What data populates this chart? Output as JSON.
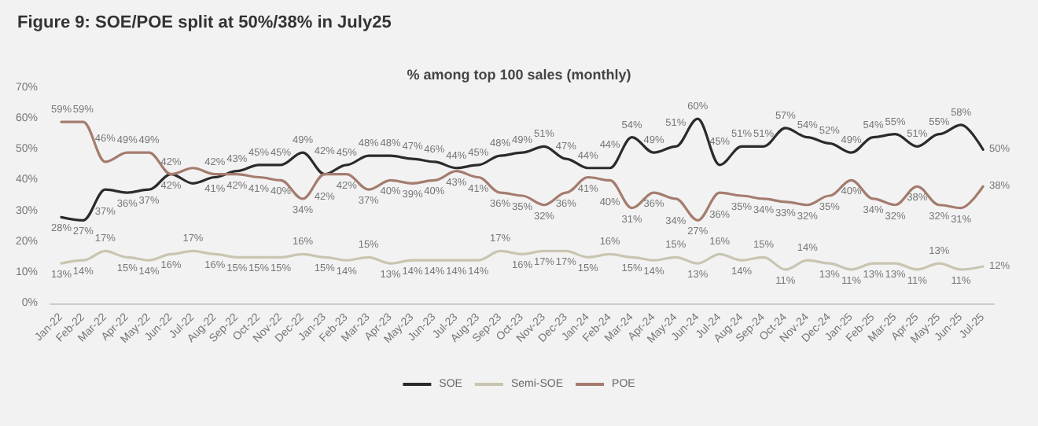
{
  "chart_data": {
    "type": "line",
    "title": "Figure 9: SOE/POE split at 50%/38% in July25",
    "subtitle": "% among top 100 sales (monthly)",
    "categories": [
      "Jan-22",
      "Feb-22",
      "Mar-22",
      "Apr-22",
      "May-22",
      "Jun-22",
      "Jul-22",
      "Aug-22",
      "Sep-22",
      "Oct-22",
      "Nov-22",
      "Dec-22",
      "Jan-23",
      "Feb-23",
      "Mar-23",
      "Apr-23",
      "May-23",
      "Jun-23",
      "Jul-23",
      "Aug-23",
      "Sep-23",
      "Oct-23",
      "Nov-23",
      "Dec-23",
      "Jan-24",
      "Feb-24",
      "Mar-24",
      "Apr-24",
      "May-24",
      "Jun-24",
      "Jul-24",
      "Aug-24",
      "Sep-24",
      "Oct-24",
      "Nov-24",
      "Dec-24",
      "Jan-25",
      "Feb-25",
      "Mar-25",
      "Apr-25",
      "May-25",
      "Jun-25",
      "Jul-25"
    ],
    "series": [
      {
        "name": "SOE",
        "color": "#2b2b2b",
        "values": [
          28,
          27,
          37,
          36,
          37,
          42,
          39,
          41,
          43,
          45,
          45,
          49,
          42,
          45,
          48,
          48,
          47,
          46,
          44,
          45,
          48,
          49,
          51,
          47,
          44,
          44,
          54,
          49,
          51,
          60,
          45,
          51,
          51,
          57,
          54,
          52,
          49,
          54,
          55,
          51,
          55,
          58,
          50
        ],
        "value_labels": [
          "28%",
          "27%",
          "37%",
          "36%",
          "37%",
          "42%",
          null,
          "41%",
          "43%",
          "45%",
          "45%",
          "49%",
          "42%",
          "45%",
          "48%",
          "48%",
          "47%",
          "46%",
          "44%",
          "45%",
          "48%",
          "49%",
          "51%",
          "47%",
          "44%",
          "44%",
          "54%",
          "49%",
          "51%",
          "60%",
          "45%",
          "51%",
          "51%",
          "57%",
          "54%",
          "52%",
          "49%",
          "54%",
          "55%",
          "51%",
          "55%",
          "58%",
          "50%"
        ]
      },
      {
        "name": "Semi-SOE",
        "color": "#c9c5b1",
        "values": [
          13,
          14,
          17,
          15,
          14,
          16,
          17,
          16,
          15,
          15,
          15,
          16,
          15,
          14,
          15,
          13,
          14,
          14,
          14,
          14,
          17,
          16,
          17,
          17,
          15,
          16,
          15,
          14,
          15,
          13,
          16,
          14,
          15,
          11,
          14,
          13,
          11,
          13,
          13,
          11,
          13,
          11,
          12
        ],
        "value_labels": [
          "13%",
          "14%",
          "17%",
          "15%",
          "14%",
          "16%",
          "17%",
          "16%",
          "15%",
          "15%",
          "15%",
          "16%",
          "15%",
          "14%",
          "15%",
          "13%",
          "14%",
          "14%",
          "14%",
          "14%",
          "17%",
          "16%",
          "17%",
          "17%",
          "15%",
          "16%",
          "15%",
          "14%",
          "15%",
          "13%",
          "16%",
          "14%",
          "15%",
          "11%",
          "14%",
          "13%",
          "11%",
          "13%",
          "13%",
          "11%",
          "13%",
          "11%",
          "12%"
        ]
      },
      {
        "name": "POE",
        "color": "#a47c6e",
        "values": [
          59,
          59,
          46,
          49,
          49,
          42,
          44,
          42,
          42,
          41,
          40,
          34,
          42,
          42,
          37,
          40,
          39,
          40,
          43,
          41,
          36,
          35,
          32,
          36,
          41,
          40,
          31,
          36,
          34,
          27,
          36,
          35,
          34,
          33,
          32,
          35,
          40,
          34,
          32,
          38,
          32,
          31,
          38
        ],
        "value_labels": [
          "59%",
          "59%",
          "46%",
          "49%",
          "49%",
          "42%",
          null,
          "42%",
          "42%",
          "41%",
          "40%",
          "34%",
          "42%",
          "42%",
          "37%",
          "40%",
          "39%",
          "40%",
          "43%",
          "41%",
          "36%",
          "35%",
          "32%",
          "36%",
          "41%",
          "40%",
          "31%",
          "36%",
          "34%",
          "27%",
          "36%",
          "35%",
          "34%",
          "33%",
          "32%",
          "35%",
          "40%",
          "34%",
          "32%",
          "38%",
          "32%",
          "31%",
          "38%"
        ]
      }
    ],
    "ylim": [
      0,
      70
    ],
    "yticks": [
      {
        "value": 0,
        "label": "0%"
      },
      {
        "value": 10,
        "label": "10%"
      },
      {
        "value": 20,
        "label": "20%"
      },
      {
        "value": 30,
        "label": "30%"
      },
      {
        "value": 40,
        "label": "40%"
      },
      {
        "value": 50,
        "label": "50%"
      },
      {
        "value": 60,
        "label": "60%"
      },
      {
        "value": 70,
        "label": "70%"
      }
    ],
    "legend": "bottom",
    "grid": false,
    "marker": "none",
    "line_style": "solid"
  }
}
